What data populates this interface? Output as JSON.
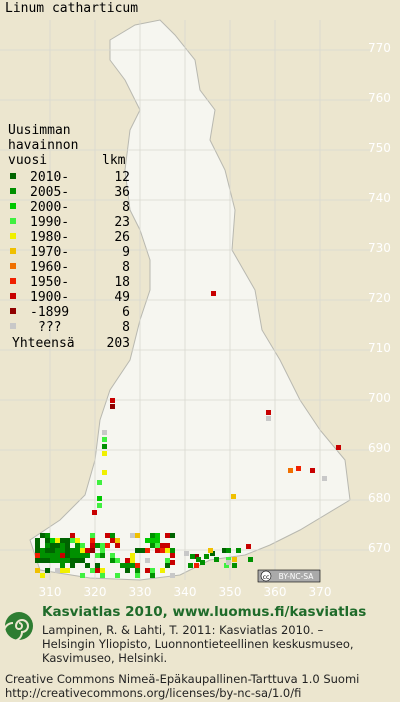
{
  "title": "Linum catharticum",
  "legend": {
    "heading": [
      "Uusimman",
      "havainnon"
    ],
    "columns": [
      "vuosi",
      "lkm"
    ],
    "rows": [
      {
        "label": "2010-",
        "count": 12,
        "color": "#006400"
      },
      {
        "label": "2005-",
        "count": 36,
        "color": "#009000"
      },
      {
        "label": "2000-",
        "count": 8,
        "color": "#00c800"
      },
      {
        "label": "1990-",
        "count": 23,
        "color": "#40f040"
      },
      {
        "label": "1980-",
        "count": 26,
        "color": "#f0f000"
      },
      {
        "label": "1970-",
        "count": 9,
        "color": "#f0c000"
      },
      {
        "label": "1960-",
        "count": 8,
        "color": "#f07000"
      },
      {
        "label": "1950-",
        "count": 18,
        "color": "#f02000"
      },
      {
        "label": "1900-",
        "count": 49,
        "color": "#c80000"
      },
      {
        "label": "-1899",
        "count": 6,
        "color": "#900000"
      },
      {
        "label": "???",
        "count": 8,
        "color": "#c8c8c8"
      }
    ],
    "total": {
      "label": "Yhteensä",
      "count": 203
    }
  },
  "grid": {
    "northing": [
      770,
      760,
      750,
      740,
      730,
      720,
      710,
      700,
      690,
      680,
      670
    ],
    "easting": [
      310,
      320,
      330,
      340,
      350,
      360,
      370
    ]
  },
  "badge": "BY-NC-SA",
  "footer": {
    "site": "Kasviatlas 2010, www.luomus.fi/kasviatlas",
    "citation": [
      "Lampinen, R. & Lahti, T. 2011: Kasviatlas 2010. –",
      "Helsingin Yliopisto, Luonnontieteellinen keskusmuseo,",
      "Kasvimuseo, Helsinki."
    ],
    "license": [
      "Creative Commons Nimeä-Epäkaupallinen-Tarttuva 1.0 Suomi",
      "http://creativecommons.org/licenses/by-nc-sa/1.0/fi"
    ]
  }
}
